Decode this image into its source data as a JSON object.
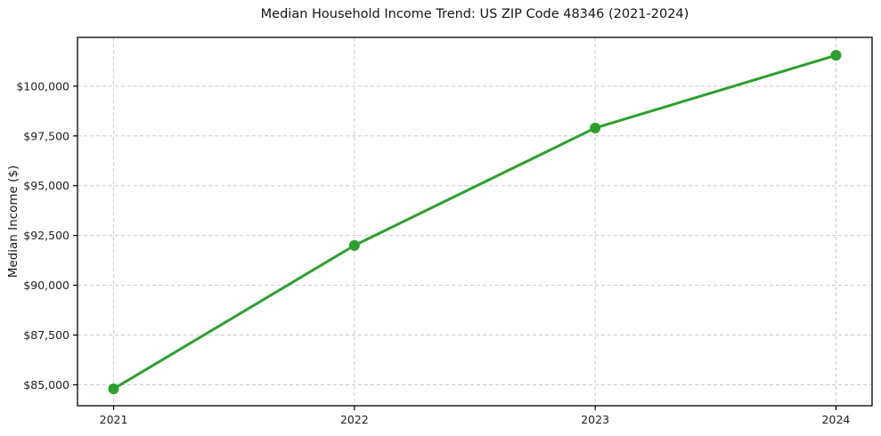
{
  "chart_data": {
    "type": "line",
    "title": "Median Household Income Trend: US ZIP Code 48346 (2021-2024)",
    "xlabel": "",
    "ylabel": "Median Income ($)",
    "x": [
      2021,
      2022,
      2023,
      2024
    ],
    "series": [
      {
        "name": "Median Household Income",
        "values": [
          84800,
          92000,
          97900,
          101550
        ]
      }
    ],
    "x_ticks": [
      {
        "value": 2021,
        "label": "2021"
      },
      {
        "value": 2022,
        "label": "2022"
      },
      {
        "value": 2023,
        "label": "2023"
      },
      {
        "value": 2024,
        "label": "2024"
      }
    ],
    "y_ticks": [
      {
        "value": 85000,
        "label": "$85,000"
      },
      {
        "value": 87500,
        "label": "$87,500"
      },
      {
        "value": 90000,
        "label": "$90,000"
      },
      {
        "value": 92500,
        "label": "$92,500"
      },
      {
        "value": 95000,
        "label": "$95,000"
      },
      {
        "value": 97500,
        "label": "$97,500"
      },
      {
        "value": 100000,
        "label": "$100,000"
      }
    ],
    "xlim": [
      2020.85,
      2024.15
    ],
    "ylim": [
      83950,
      102450
    ],
    "grid": true,
    "grid_style": "dashed",
    "legend": "none",
    "line_color": "#2ca02c",
    "marker": "circle",
    "grid_color": "#cccccc",
    "spine_color": "#000000",
    "tick_label_color": "#222222",
    "background": "#ffffff"
  }
}
